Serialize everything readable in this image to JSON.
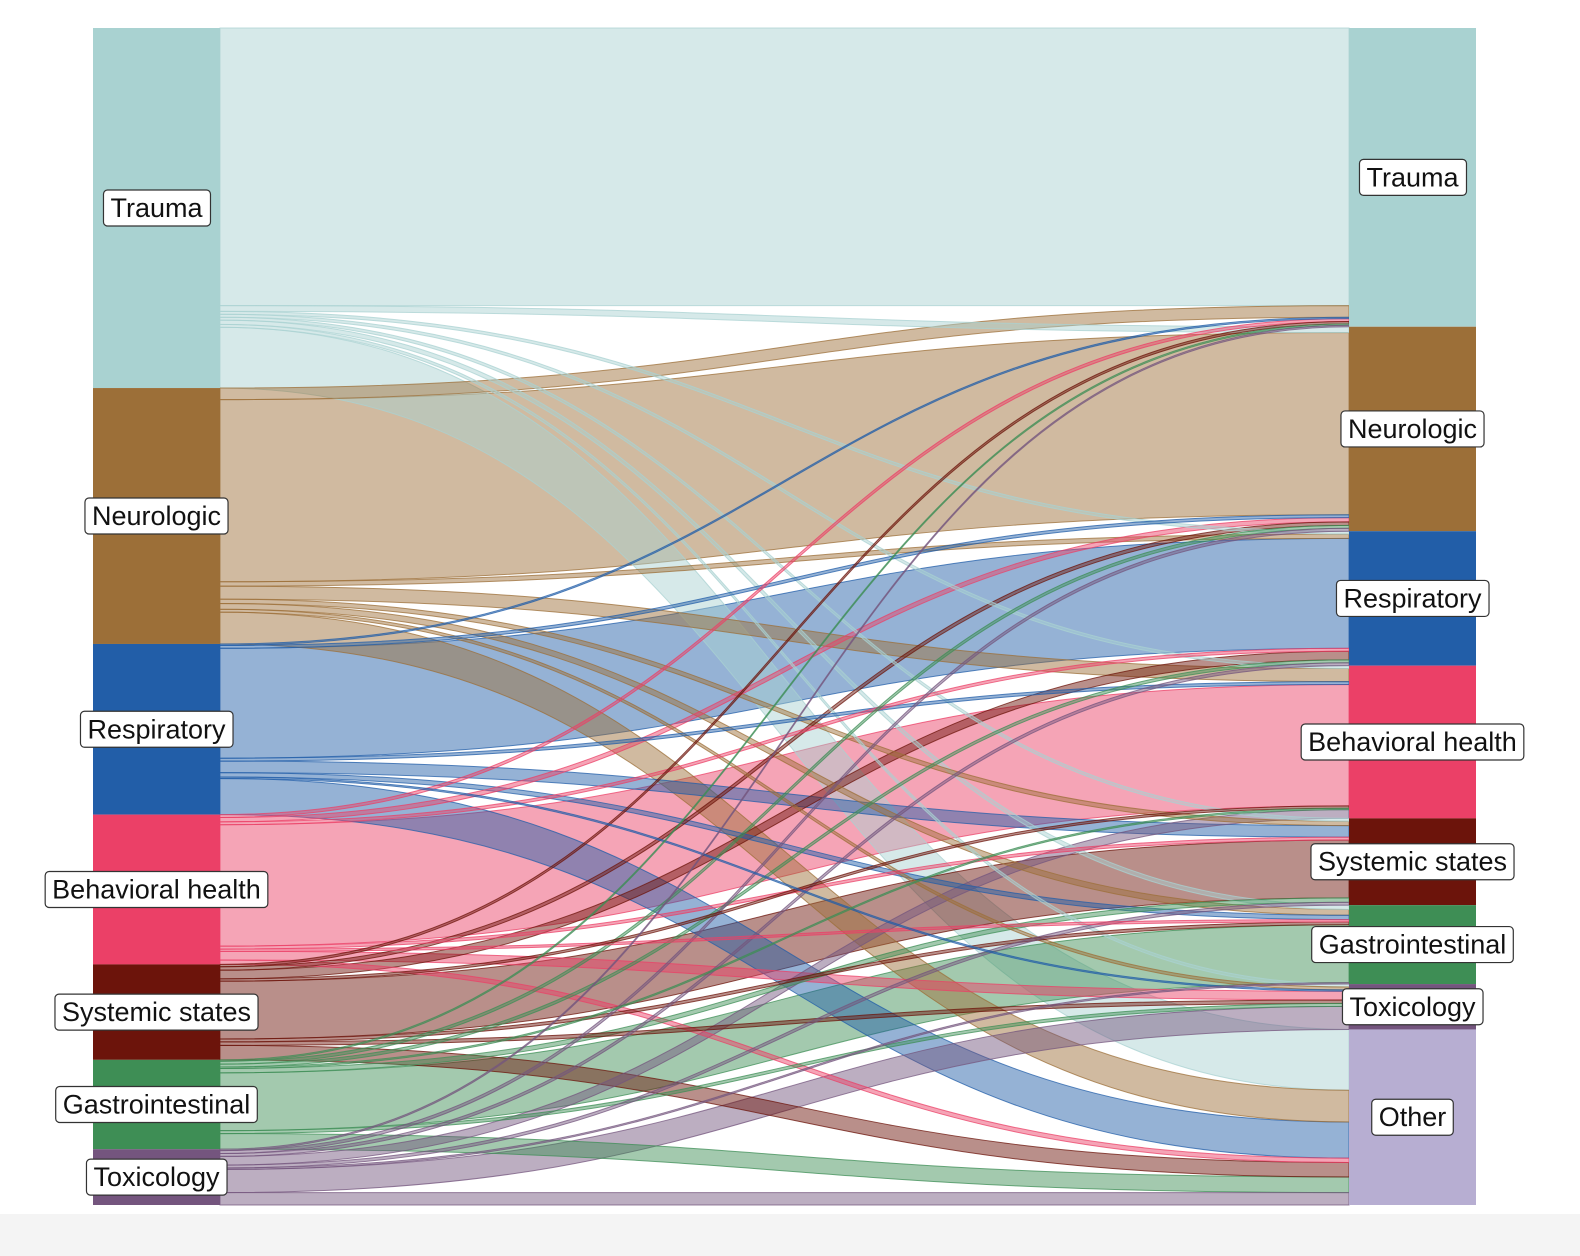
{
  "chart_data": {
    "type": "sankey",
    "title": "",
    "left_nodes": [
      {
        "id": "trauma",
        "label": "Trauma",
        "color": "#a9d2d1",
        "value": 1245
      },
      {
        "id": "neuro",
        "label": "Neurologic",
        "color": "#9c6f38",
        "value": 885
      },
      {
        "id": "resp",
        "label": "Respiratory",
        "color": "#225ea8",
        "value": 590
      },
      {
        "id": "bh",
        "label": "Behavioral health",
        "color": "#eb4067",
        "value": 518
      },
      {
        "id": "sys",
        "label": "Systemic states",
        "color": "#6c140b",
        "value": 330
      },
      {
        "id": "gi",
        "label": "Gastrointestinal",
        "color": "#3e8e55",
        "value": 309
      },
      {
        "id": "tox",
        "label": "Toxicology",
        "color": "#74557e",
        "value": 193
      }
    ],
    "right_nodes": [
      {
        "id": "trauma",
        "label": "Trauma",
        "color": "#a9d2d1"
      },
      {
        "id": "neuro",
        "label": "Neurologic",
        "color": "#9c6f38"
      },
      {
        "id": "resp",
        "label": "Respiratory",
        "color": "#225ea8"
      },
      {
        "id": "bh",
        "label": "Behavioral health",
        "color": "#eb4067"
      },
      {
        "id": "sys",
        "label": "Systemic states",
        "color": "#6c140b"
      },
      {
        "id": "gi",
        "label": "Gastrointestinal",
        "color": "#3e8e55"
      },
      {
        "id": "tox",
        "label": "Toxicology",
        "color": "#74557e"
      },
      {
        "id": "other",
        "label": "Other",
        "color": "#b7aed2"
      }
    ],
    "flows": [
      {
        "source": "trauma",
        "target": "trauma",
        "value": 960
      },
      {
        "source": "trauma",
        "target": "neuro",
        "value": 20
      },
      {
        "source": "trauma",
        "target": "resp",
        "value": 10
      },
      {
        "source": "trauma",
        "target": "bh",
        "value": 10
      },
      {
        "source": "trauma",
        "target": "sys",
        "value": 10
      },
      {
        "source": "trauma",
        "target": "gi",
        "value": 15
      },
      {
        "source": "trauma",
        "target": "tox",
        "value": 10
      },
      {
        "source": "trauma",
        "target": "other",
        "value": 210
      },
      {
        "source": "neuro",
        "target": "trauma",
        "value": 40
      },
      {
        "source": "neuro",
        "target": "neuro",
        "value": 630
      },
      {
        "source": "neuro",
        "target": "resp",
        "value": 15
      },
      {
        "source": "neuro",
        "target": "bh",
        "value": 45
      },
      {
        "source": "neuro",
        "target": "sys",
        "value": 15
      },
      {
        "source": "neuro",
        "target": "gi",
        "value": 20
      },
      {
        "source": "neuro",
        "target": "tox",
        "value": 10
      },
      {
        "source": "neuro",
        "target": "other",
        "value": 110
      },
      {
        "source": "resp",
        "target": "trauma",
        "value": 5
      },
      {
        "source": "resp",
        "target": "neuro",
        "value": 10
      },
      {
        "source": "resp",
        "target": "resp",
        "value": 380
      },
      {
        "source": "resp",
        "target": "bh",
        "value": 10
      },
      {
        "source": "resp",
        "target": "sys",
        "value": 40
      },
      {
        "source": "resp",
        "target": "gi",
        "value": 15
      },
      {
        "source": "resp",
        "target": "tox",
        "value": 5
      },
      {
        "source": "resp",
        "target": "other",
        "value": 125
      },
      {
        "source": "bh",
        "target": "trauma",
        "value": 10
      },
      {
        "source": "bh",
        "target": "neuro",
        "value": 15
      },
      {
        "source": "bh",
        "target": "resp",
        "value": 10
      },
      {
        "source": "bh",
        "target": "bh",
        "value": 420
      },
      {
        "source": "bh",
        "target": "sys",
        "value": 10
      },
      {
        "source": "bh",
        "target": "gi",
        "value": 8
      },
      {
        "source": "bh",
        "target": "tox",
        "value": 30
      },
      {
        "source": "bh",
        "target": "other",
        "value": 15
      },
      {
        "source": "sys",
        "target": "trauma",
        "value": 8
      },
      {
        "source": "sys",
        "target": "neuro",
        "value": 12
      },
      {
        "source": "sys",
        "target": "resp",
        "value": 30
      },
      {
        "source": "sys",
        "target": "bh",
        "value": 8
      },
      {
        "source": "sys",
        "target": "sys",
        "value": 200
      },
      {
        "source": "sys",
        "target": "gi",
        "value": 10
      },
      {
        "source": "sys",
        "target": "tox",
        "value": 12
      },
      {
        "source": "sys",
        "target": "other",
        "value": 50
      },
      {
        "source": "gi",
        "target": "trauma",
        "value": 5
      },
      {
        "source": "gi",
        "target": "neuro",
        "value": 10
      },
      {
        "source": "gi",
        "target": "resp",
        "value": 10
      },
      {
        "source": "gi",
        "target": "bh",
        "value": 5
      },
      {
        "source": "gi",
        "target": "sys",
        "value": 15
      },
      {
        "source": "gi",
        "target": "gi",
        "value": 200
      },
      {
        "source": "gi",
        "target": "tox",
        "value": 10
      },
      {
        "source": "gi",
        "target": "other",
        "value": 54
      },
      {
        "source": "tox",
        "target": "trauma",
        "value": 5
      },
      {
        "source": "tox",
        "target": "neuro",
        "value": 10
      },
      {
        "source": "tox",
        "target": "resp",
        "value": 10
      },
      {
        "source": "tox",
        "target": "bh",
        "value": 30
      },
      {
        "source": "tox",
        "target": "sys",
        "value": 10
      },
      {
        "source": "tox",
        "target": "gi",
        "value": 5
      },
      {
        "source": "tox",
        "target": "tox",
        "value": 80
      },
      {
        "source": "tox",
        "target": "other",
        "value": 43
      }
    ]
  }
}
